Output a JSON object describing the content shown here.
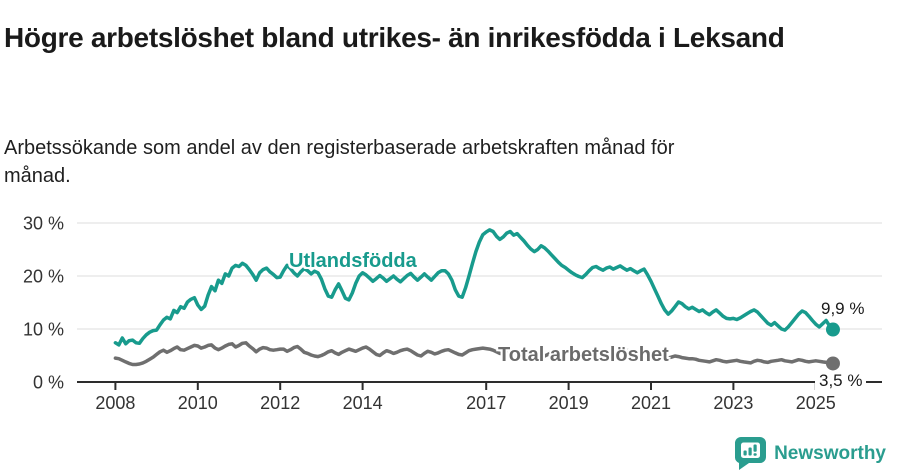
{
  "header": {
    "title": "Högre arbetslöshet bland utrikes- än inrikesfödda i Leksand",
    "subtitle": "Arbetssökande som andel av den registerbaserade arbetskraften månad för månad."
  },
  "chart_data": {
    "type": "line",
    "x_unit": "month",
    "start_year": 2008,
    "end_x": "2025-06",
    "x_tick_years": [
      2008,
      2010,
      2012,
      2014,
      2017,
      2019,
      2021,
      2023,
      2025
    ],
    "x_tick_labels": [
      "2008",
      "2010",
      "2012",
      "2014",
      "2017",
      "2019",
      "2021",
      "2023",
      "2025"
    ],
    "y_ticks": [
      0,
      10,
      20,
      30
    ],
    "y_tick_labels": [
      "0 %",
      "10 %",
      "20 %",
      "30 %"
    ],
    "ylim": [
      0,
      31
    ],
    "grid": "horizontal",
    "colors": {
      "accent_teal": "#189b8d",
      "neutral_gray": "#6f6f6f",
      "gridline": "#dcdcdc",
      "axis": "#2d2d2d"
    },
    "series": [
      {
        "name": "Utlandsfödda",
        "color": "#189b8d",
        "end_label": "9,9 %",
        "end_value": 9.9,
        "values": [
          7.4,
          7.0,
          8.3,
          7.2,
          7.8,
          7.9,
          7.4,
          7.3,
          8.2,
          8.9,
          9.4,
          9.7,
          9.8,
          10.8,
          11.7,
          12.2,
          11.9,
          13.5,
          13.1,
          14.2,
          13.9,
          15.1,
          15.6,
          15.9,
          14.5,
          13.7,
          14.3,
          16.4,
          18.0,
          17.2,
          19.2,
          18.6,
          20.4,
          20.0,
          21.5,
          22.0,
          21.8,
          22.4,
          22.0,
          21.2,
          20.3,
          19.2,
          20.6,
          21.2,
          21.5,
          20.8,
          20.3,
          19.7,
          19.8,
          21.0,
          22.0,
          21.4,
          20.6,
          20.0,
          20.8,
          21.4,
          21.0,
          20.4,
          20.9,
          20.6,
          19.4,
          17.6,
          16.2,
          16.0,
          17.4,
          18.5,
          17.2,
          15.8,
          15.5,
          16.8,
          18.6,
          20.0,
          20.6,
          20.2,
          19.6,
          19.0,
          19.5,
          20.1,
          19.6,
          19.0,
          19.5,
          20.0,
          19.4,
          18.9,
          19.5,
          20.1,
          20.5,
          19.8,
          19.2,
          19.8,
          20.4,
          19.8,
          19.2,
          19.9,
          20.6,
          21.0,
          21.0,
          20.4,
          19.2,
          17.4,
          16.2,
          16.0,
          17.8,
          20.0,
          22.4,
          24.6,
          26.4,
          27.8,
          28.3,
          28.7,
          28.4,
          27.5,
          26.9,
          27.4,
          28.1,
          28.4,
          27.7,
          28.0,
          27.3,
          26.6,
          25.8,
          25.1,
          24.6,
          25.0,
          25.7,
          25.3,
          24.7,
          24.0,
          23.3,
          22.6,
          22.0,
          21.6,
          21.1,
          20.6,
          20.2,
          19.9,
          19.7,
          20.3,
          21.0,
          21.6,
          21.8,
          21.4,
          21.1,
          21.5,
          21.7,
          21.3,
          21.6,
          21.9,
          21.5,
          21.1,
          21.4,
          21.0,
          20.6,
          21.0,
          21.3,
          20.2,
          19.0,
          17.6,
          16.2,
          14.8,
          13.6,
          12.8,
          13.4,
          14.2,
          15.1,
          14.8,
          14.2,
          13.8,
          14.1,
          13.7,
          13.3,
          13.6,
          13.1,
          12.7,
          13.2,
          13.6,
          13.0,
          12.4,
          12.0,
          11.9,
          12.0,
          11.8,
          12.1,
          12.5,
          12.9,
          13.3,
          13.6,
          13.2,
          12.5,
          11.8,
          11.1,
          10.7,
          11.2,
          10.6,
          10.0,
          9.8,
          10.4,
          11.2,
          12.0,
          12.8,
          13.4,
          13.1,
          12.4,
          11.6,
          10.9,
          10.4,
          11.0,
          11.6,
          10.6,
          9.9
        ]
      },
      {
        "name": "Total arbetslöshet",
        "color": "#6f6f6f",
        "end_label": "3,5 %",
        "end_value": 3.5,
        "values": [
          4.5,
          4.4,
          4.1,
          3.8,
          3.5,
          3.3,
          3.3,
          3.4,
          3.6,
          3.9,
          4.3,
          4.7,
          5.2,
          5.7,
          6.0,
          5.6,
          5.9,
          6.3,
          6.6,
          6.1,
          6.0,
          6.3,
          6.6,
          6.9,
          6.8,
          6.4,
          6.6,
          6.9,
          7.0,
          6.4,
          6.1,
          6.4,
          6.8,
          7.1,
          7.2,
          6.6,
          6.9,
          7.3,
          7.4,
          6.8,
          6.3,
          5.7,
          6.2,
          6.5,
          6.4,
          6.1,
          6.0,
          6.1,
          6.2,
          6.2,
          5.8,
          6.1,
          6.5,
          6.7,
          6.2,
          5.6,
          5.4,
          5.1,
          4.9,
          4.8,
          5.0,
          5.3,
          5.7,
          5.9,
          5.5,
          5.2,
          5.6,
          5.9,
          6.2,
          6.0,
          5.8,
          6.1,
          6.4,
          6.6,
          6.2,
          5.7,
          5.2,
          5.0,
          5.5,
          5.9,
          5.7,
          5.4,
          5.6,
          5.9,
          6.1,
          6.2,
          5.9,
          5.5,
          5.1,
          4.9,
          5.4,
          5.8,
          5.6,
          5.3,
          5.5,
          5.8,
          6.0,
          6.1,
          5.8,
          5.5,
          5.2,
          5.1,
          5.5,
          5.9,
          6.1,
          6.2,
          6.3,
          6.4,
          6.3,
          6.2,
          6.0,
          5.7,
          5.4,
          5.3,
          5.7,
          6.0,
          5.8,
          5.6,
          5.7,
          5.9,
          5.9,
          5.8,
          5.6,
          5.3,
          5.0,
          4.9,
          5.2,
          5.5,
          5.3,
          5.1,
          5.2,
          5.4,
          5.5,
          5.5,
          5.3,
          5.0,
          4.8,
          4.7,
          5.0,
          5.3,
          5.1,
          4.9,
          5.0,
          5.2,
          5.4,
          5.3,
          5.6,
          5.9,
          6.0,
          5.9,
          6.0,
          5.8,
          5.6,
          5.5,
          5.4,
          5.5,
          5.4,
          5.3,
          5.1,
          4.9,
          4.7,
          4.5,
          4.7,
          4.9,
          4.8,
          4.6,
          4.5,
          4.4,
          4.4,
          4.3,
          4.1,
          4.0,
          3.9,
          3.8,
          4.0,
          4.2,
          4.1,
          3.9,
          3.8,
          3.9,
          4.0,
          4.1,
          3.9,
          3.8,
          3.7,
          3.6,
          3.9,
          4.1,
          4.0,
          3.8,
          3.7,
          3.9,
          4.0,
          4.1,
          4.2,
          4.0,
          3.9,
          3.8,
          4.0,
          4.2,
          4.1,
          3.9,
          3.8,
          3.9,
          4.0,
          3.9,
          3.8,
          3.7,
          3.6,
          3.5
        ]
      }
    ]
  },
  "footer": {
    "brand": "Newsworthy",
    "logo_color": "#2a9d8f"
  }
}
